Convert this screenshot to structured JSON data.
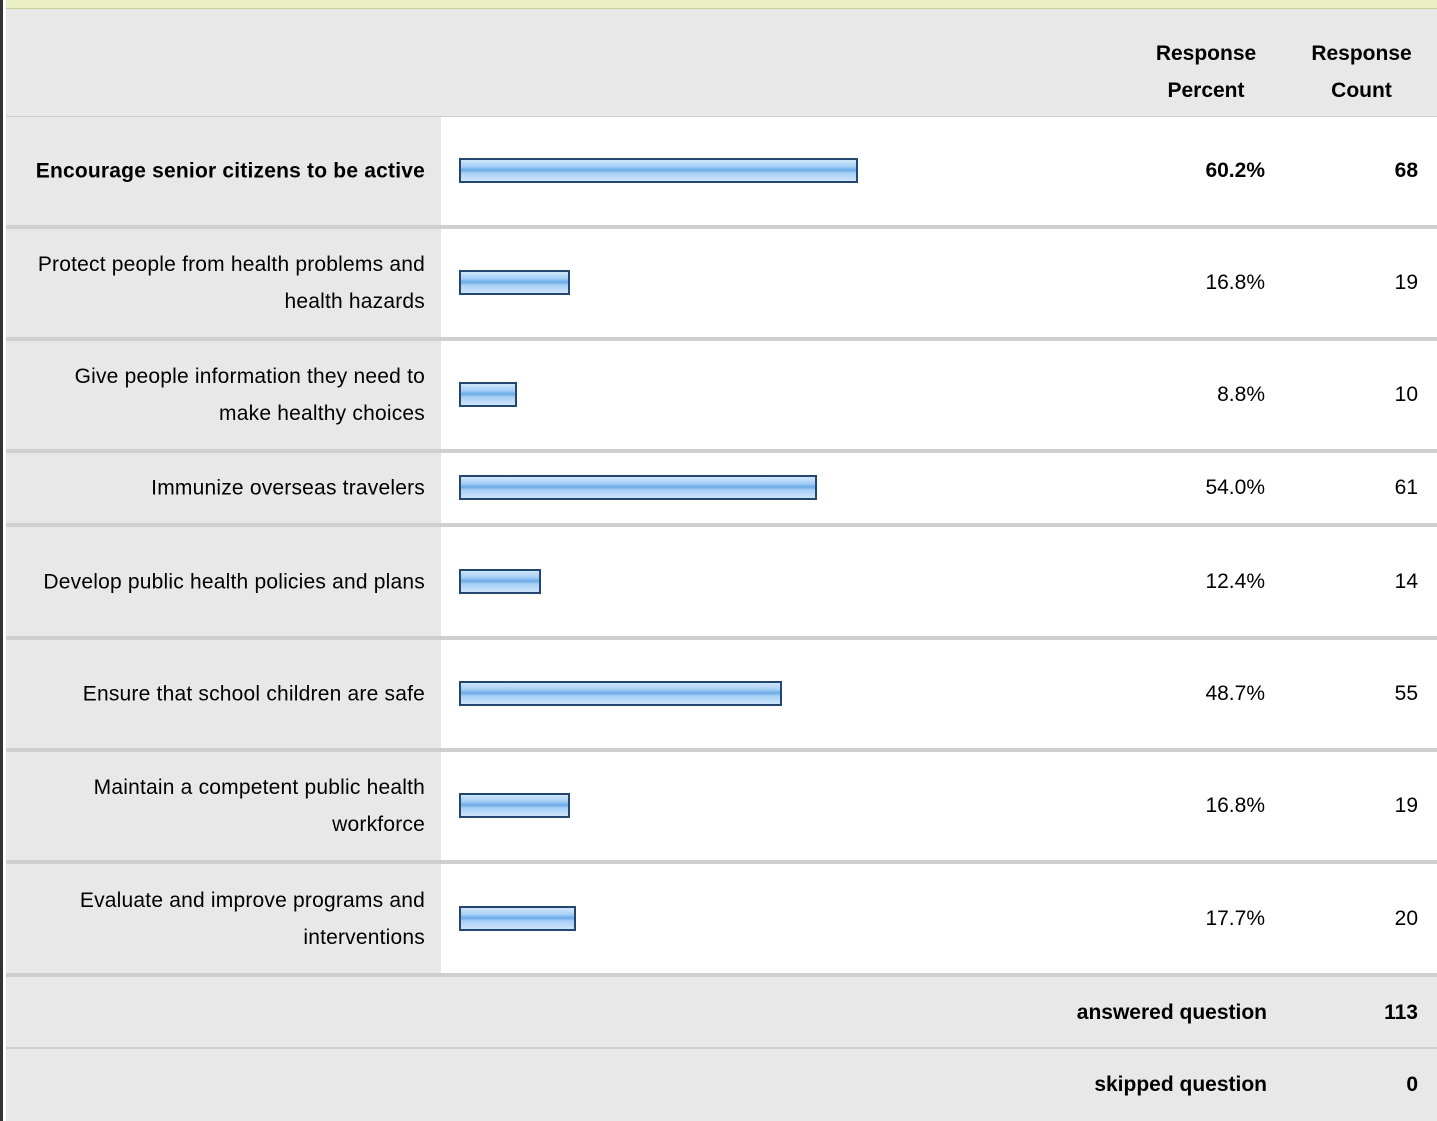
{
  "header": {
    "percent_label": "Response\nPercent",
    "count_label": "Response\nCount"
  },
  "chart_data": {
    "type": "bar",
    "orientation": "horizontal",
    "categories": [
      "Encourage senior citizens to be active",
      "Protect people from health problems and health hazards",
      "Give people information they need to make healthy choices",
      "Immunize overseas travelers",
      "Develop public health policies and plans",
      "Ensure that school children are safe",
      "Maintain a competent public health workforce",
      "Evaluate and improve programs and interventions"
    ],
    "series": [
      {
        "values": [
          60.2,
          16.8,
          8.8,
          54.0,
          12.4,
          48.7,
          16.8,
          17.7
        ]
      }
    ],
    "percent_labels": [
      "60.2%",
      "16.8%",
      "8.8%",
      "54.0%",
      "12.4%",
      "48.7%",
      "16.8%",
      "17.7%"
    ],
    "counts": [
      68,
      19,
      10,
      61,
      14,
      55,
      19,
      20
    ],
    "bold_rows": [
      0
    ],
    "bar_color": "#8ec3f0",
    "bar_border_color": "#25466e",
    "xlim": [
      0,
      100
    ],
    "grid": false,
    "legend": "none"
  },
  "footer": {
    "answered_label": "answered question",
    "answered_value": "113",
    "skipped_label": "skipped question",
    "skipped_value": "0"
  }
}
